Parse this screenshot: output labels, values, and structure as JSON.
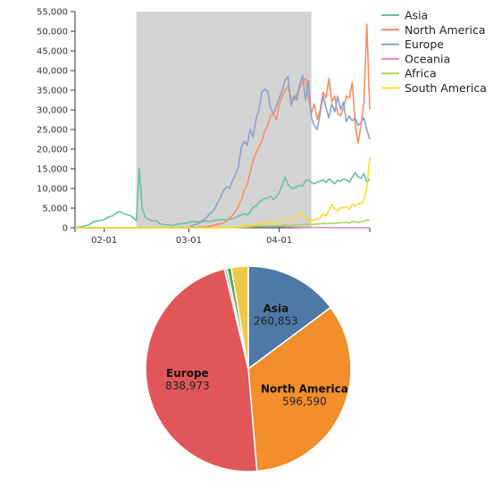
{
  "chart_data": [
    {
      "type": "line",
      "x": [
        "01-22",
        "01-23",
        "01-24",
        "01-25",
        "01-26",
        "01-27",
        "01-28",
        "01-29",
        "01-30",
        "01-31",
        "02-01",
        "02-02",
        "02-03",
        "02-04",
        "02-05",
        "02-06",
        "02-07",
        "02-08",
        "02-09",
        "02-10",
        "02-11",
        "02-12",
        "02-13",
        "02-14",
        "02-15",
        "02-16",
        "02-17",
        "02-18",
        "02-19",
        "02-20",
        "02-21",
        "02-22",
        "02-23",
        "02-24",
        "02-25",
        "02-26",
        "02-27",
        "02-28",
        "02-29",
        "03-01",
        "03-02",
        "03-03",
        "03-04",
        "03-05",
        "03-06",
        "03-07",
        "03-08",
        "03-09",
        "03-10",
        "03-11",
        "03-12",
        "03-13",
        "03-14",
        "03-15",
        "03-16",
        "03-17",
        "03-18",
        "03-19",
        "03-20",
        "03-21",
        "03-22",
        "03-23",
        "03-24",
        "03-25",
        "03-26",
        "03-27",
        "03-28",
        "03-29",
        "03-30",
        "03-31",
        "04-01",
        "04-02",
        "04-03",
        "04-04",
        "04-05",
        "04-06",
        "04-07",
        "04-08",
        "04-09",
        "04-10",
        "04-11",
        "04-12",
        "04-13",
        "04-14",
        "04-15",
        "04-16",
        "04-17",
        "04-18",
        "04-19",
        "04-20",
        "04-21",
        "04-22",
        "04-23",
        "04-24",
        "04-25",
        "04-26",
        "04-27",
        "04-28",
        "04-29",
        "04-30",
        "05-01",
        "05-02"
      ],
      "x_ticks": [
        "02-01",
        "03-01",
        "04-01"
      ],
      "y_ticks": [
        "0",
        "5,000",
        "10,000",
        "15,000",
        "20,000",
        "25,000",
        "30,000",
        "35,000",
        "40,000",
        "45,000",
        "50,000",
        "55,000"
      ],
      "ylim": [
        0,
        55000
      ],
      "highlight_range": [
        "02-12",
        "04-12"
      ],
      "highlight_color": "#d3d3d3",
      "legend_position": "top-right",
      "series": [
        {
          "name": "Asia",
          "color": "#66c2a5",
          "values": [
            100,
            150,
            250,
            400,
            600,
            800,
            1400,
            1600,
            1800,
            1900,
            2100,
            2600,
            2800,
            3100,
            3600,
            4100,
            3900,
            3500,
            3300,
            3100,
            2500,
            1800,
            15200,
            5000,
            2700,
            2200,
            1900,
            1700,
            1800,
            1000,
            900,
            700,
            800,
            600,
            700,
            900,
            1000,
            1100,
            1200,
            1300,
            1500,
            1600,
            1500,
            1400,
            1600,
            1800,
            1500,
            1700,
            1900,
            2000,
            2000,
            2100,
            2000,
            2200,
            2300,
            2600,
            3000,
            3200,
            3600,
            3200,
            4000,
            5200,
            5500,
            6500,
            7000,
            7400,
            7600,
            8000,
            7200,
            7800,
            9000,
            10800,
            12800,
            11000,
            10200,
            10000,
            10500,
            10800,
            10600,
            12000,
            12200,
            11500,
            11200,
            11600,
            11800,
            12200,
            11500,
            12400,
            11900,
            11200,
            12100,
            11800,
            12400,
            12200,
            11600,
            12800,
            14000,
            13000,
            12600,
            13800,
            11500,
            12400
          ]
        },
        {
          "name": "North America",
          "color": "#fc8d62",
          "values": [
            0,
            0,
            0,
            0,
            0,
            0,
            0,
            0,
            0,
            0,
            0,
            0,
            0,
            0,
            0,
            0,
            0,
            0,
            0,
            0,
            0,
            0,
            0,
            0,
            0,
            0,
            0,
            0,
            0,
            0,
            0,
            0,
            0,
            0,
            0,
            0,
            0,
            0,
            0,
            0,
            100,
            100,
            150,
            200,
            250,
            300,
            400,
            500,
            700,
            900,
            1000,
            1300,
            1800,
            2500,
            3200,
            4200,
            5500,
            7000,
            9500,
            11000,
            14000,
            17000,
            19000,
            20500,
            22000,
            24500,
            26000,
            28500,
            29000,
            27500,
            31500,
            33500,
            35000,
            36000,
            33000,
            32500,
            34000,
            35500,
            37000,
            38000,
            33000,
            29000,
            31500,
            27500,
            30000,
            34500,
            33000,
            38000,
            32000,
            33500,
            29000,
            28500,
            30500,
            33500,
            33000,
            37000,
            26500,
            21500,
            26000,
            32000,
            51800,
            30000
          ]
        },
        {
          "name": "Europe",
          "color": "#8da0cb",
          "values": [
            0,
            0,
            0,
            0,
            0,
            0,
            0,
            0,
            0,
            0,
            0,
            0,
            0,
            0,
            0,
            0,
            0,
            0,
            0,
            0,
            0,
            0,
            0,
            0,
            0,
            0,
            0,
            0,
            0,
            0,
            0,
            0,
            0,
            0,
            0,
            0,
            0,
            0,
            0,
            0,
            500,
            800,
            1000,
            1500,
            2000,
            2500,
            3500,
            4000,
            5000,
            6500,
            8000,
            9500,
            10500,
            10000,
            12000,
            13500,
            15500,
            20500,
            22000,
            21000,
            25000,
            23000,
            27500,
            30000,
            34500,
            35200,
            34800,
            30500,
            29000,
            31000,
            33000,
            35000,
            37500,
            38500,
            31000,
            33500,
            32500,
            36500,
            38800,
            32500,
            37500,
            28000,
            26000,
            25000,
            29000,
            33500,
            30500,
            28000,
            31500,
            29500,
            33500,
            30000,
            32000,
            27000,
            28500,
            27200,
            28000,
            26000,
            26800,
            28000,
            25000,
            22500
          ]
        },
        {
          "name": "Oceania",
          "color": "#e78ac3",
          "values": [
            0,
            0,
            0,
            0,
            0,
            0,
            0,
            0,
            0,
            0,
            0,
            0,
            0,
            0,
            0,
            0,
            0,
            0,
            0,
            0,
            0,
            0,
            0,
            0,
            0,
            0,
            0,
            0,
            0,
            0,
            0,
            0,
            0,
            0,
            0,
            0,
            0,
            0,
            0,
            0,
            0,
            0,
            0,
            0,
            0,
            10,
            10,
            20,
            20,
            30,
            30,
            40,
            50,
            60,
            80,
            90,
            100,
            120,
            150,
            180,
            200,
            250,
            300,
            350,
            380,
            400,
            420,
            400,
            380,
            350,
            320,
            300,
            280,
            250,
            220,
            200,
            180,
            150,
            120,
            100,
            90,
            80,
            70,
            60,
            50,
            40,
            40,
            30,
            30,
            30,
            20,
            20,
            20,
            20,
            20,
            20,
            20,
            20,
            20,
            20,
            20,
            20
          ]
        },
        {
          "name": "Africa",
          "color": "#a6d854",
          "values": [
            0,
            0,
            0,
            0,
            0,
            0,
            0,
            0,
            0,
            0,
            0,
            0,
            0,
            0,
            0,
            0,
            0,
            0,
            0,
            0,
            0,
            0,
            0,
            0,
            0,
            0,
            0,
            0,
            0,
            0,
            0,
            0,
            0,
            0,
            0,
            0,
            0,
            0,
            0,
            0,
            0,
            0,
            0,
            0,
            0,
            10,
            10,
            20,
            20,
            30,
            40,
            50,
            60,
            80,
            100,
            120,
            150,
            180,
            200,
            250,
            300,
            350,
            400,
            450,
            500,
            550,
            600,
            500,
            450,
            500,
            550,
            600,
            700,
            650,
            600,
            700,
            800,
            750,
            850,
            900,
            800,
            850,
            900,
            950,
            1000,
            1100,
            1000,
            1050,
            1200,
            1100,
            1200,
            1300,
            1250,
            1400,
            1200,
            1500,
            1600,
            1300,
            1500,
            1700,
            2000,
            1800
          ]
        },
        {
          "name": "South America",
          "color": "#ffd92f",
          "values": [
            0,
            0,
            0,
            0,
            0,
            0,
            0,
            0,
            0,
            0,
            0,
            0,
            0,
            0,
            0,
            0,
            0,
            0,
            0,
            0,
            0,
            0,
            0,
            0,
            0,
            0,
            0,
            0,
            0,
            0,
            0,
            0,
            0,
            0,
            0,
            0,
            0,
            0,
            0,
            0,
            0,
            0,
            0,
            0,
            0,
            0,
            0,
            10,
            20,
            30,
            50,
            80,
            100,
            150,
            200,
            250,
            300,
            400,
            500,
            600,
            700,
            800,
            900,
            1000,
            1100,
            1200,
            1300,
            1400,
            1300,
            1500,
            1700,
            1900,
            2000,
            2200,
            2000,
            2300,
            2500,
            4000,
            3500,
            2400,
            1500,
            1800,
            2000,
            2200,
            2500,
            3500,
            3000,
            4500,
            5800,
            4800,
            4200,
            5200,
            5000,
            5400,
            4600,
            6000,
            5500,
            6200,
            6000,
            7000,
            10000,
            18000
          ]
        }
      ]
    },
    {
      "type": "pie",
      "slices": [
        {
          "name": "Asia",
          "value": 260853,
          "label": "260,853",
          "color": "#4e79a7",
          "show_label": true
        },
        {
          "name": "North America",
          "value": 596590,
          "label": "596,590",
          "color": "#f28e2b",
          "show_label": true
        },
        {
          "name": "Europe",
          "value": 838973,
          "label": "838,973",
          "color": "#e15759",
          "show_label": true
        },
        {
          "name": "Oceania",
          "value": 6900,
          "label": "6,900",
          "color": "#76b7b2",
          "show_label": false
        },
        {
          "name": "Africa",
          "value": 12000,
          "label": "12,000",
          "color": "#59a14f",
          "show_label": false
        },
        {
          "name": "South America",
          "value": 47000,
          "label": "47,000",
          "color": "#edc948",
          "show_label": false
        }
      ]
    }
  ]
}
